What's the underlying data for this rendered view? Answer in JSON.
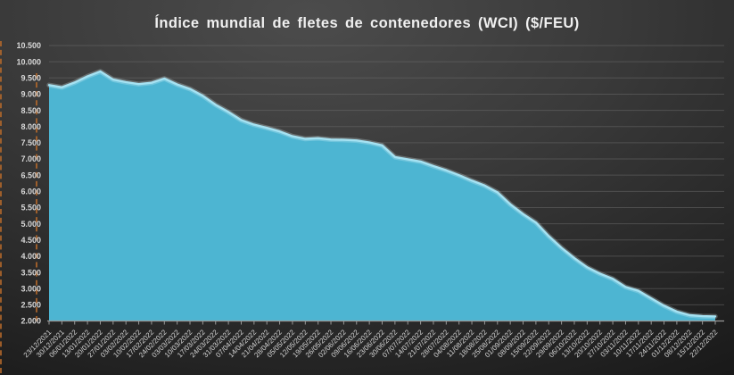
{
  "chart_data": {
    "type": "area",
    "title": "Índice mundial de fletes de contenedores (WCI) ($/FEU)",
    "xlabel": "",
    "ylabel": "",
    "legend": "none",
    "grid": "horizontal",
    "ylim": [
      2000,
      10500
    ],
    "y_ticks": [
      10500,
      10000,
      9500,
      9000,
      8500,
      8000,
      7500,
      7000,
      6500,
      6000,
      5500,
      5000,
      4500,
      4000,
      3500,
      3000,
      2500,
      2000
    ],
    "y_tick_labels": [
      "10.500",
      "10.000",
      "9.500",
      "9.000",
      "8.500",
      "8.000",
      "7.500",
      "7.000",
      "6.500",
      "6.000",
      "5.500",
      "5.000",
      "4.500",
      "4.000",
      "3.500",
      "3.000",
      "2.500",
      "2.000"
    ],
    "x": [
      "23/12/2021",
      "30/12/2021",
      "06/01/2022",
      "13/01/2022",
      "20/01/2022",
      "27/01/2022",
      "03/02/2022",
      "10/02/2022",
      "17/02/2022",
      "24/02/2022",
      "03/03/2022",
      "10/03/2022",
      "17/03/2022",
      "24/03/2022",
      "31/03/2022",
      "07/04/2022",
      "14/04/2022",
      "21/04/2022",
      "28/04/2022",
      "05/05/2022",
      "12/05/2022",
      "19/05/2022",
      "26/05/2022",
      "02/06/2022",
      "09/06/2022",
      "16/06/2022",
      "23/06/2022",
      "30/06/2022",
      "07/07/2022",
      "14/07/2022",
      "21/07/2022",
      "28/07/2022",
      "04/08/2022",
      "11/08/2022",
      "18/08/2022",
      "25/08/2022",
      "01/09/2022",
      "08/09/2022",
      "15/09/2022",
      "22/09/2022",
      "29/09/2022",
      "06/10/2022",
      "13/10/2022",
      "20/10/2022",
      "27/10/2022",
      "03/11/2022",
      "10/11/2022",
      "17/11/2022",
      "24/11/2022",
      "01/12/2022",
      "08/12/2022",
      "15/12/2022",
      "22/12/2022"
    ],
    "series": [
      {
        "name": "WCI ($/FEU)",
        "values": [
          9280,
          9210,
          9360,
          9550,
          9700,
          9450,
          9370,
          9310,
          9350,
          9480,
          9300,
          9160,
          8950,
          8670,
          8450,
          8200,
          8060,
          7960,
          7850,
          7700,
          7620,
          7640,
          7600,
          7590,
          7570,
          7510,
          7420,
          7060,
          6990,
          6920,
          6780,
          6650,
          6500,
          6330,
          6180,
          5970,
          5600,
          5300,
          5040,
          4620,
          4260,
          3940,
          3660,
          3460,
          3300,
          3050,
          2930,
          2700,
          2470,
          2290,
          2180,
          2150,
          2140
        ]
      }
    ],
    "colors": {
      "area_fill": "#4db5d2",
      "area_edge": "#a6e2f2",
      "gridline": "#6e6e6e",
      "axis": "#9a9a9a",
      "tick_label": "#d8d8d8",
      "title": "#f0f0f0",
      "selection_dash": "#b96a2b"
    }
  }
}
